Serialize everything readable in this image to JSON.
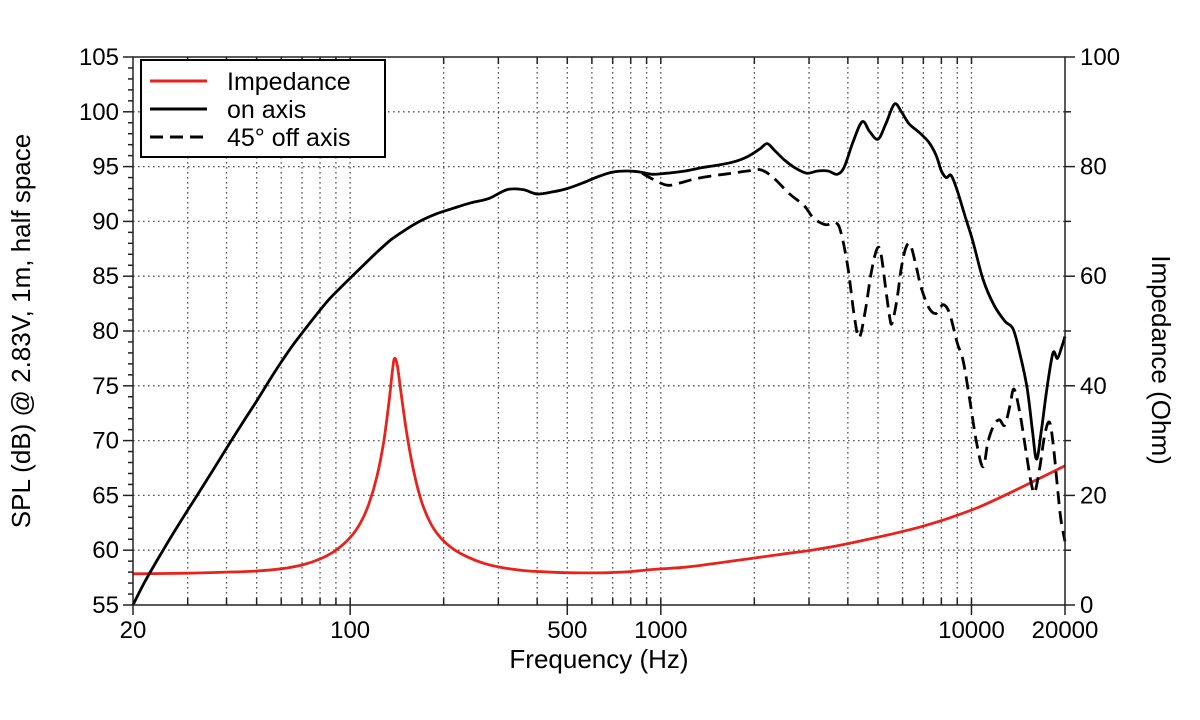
{
  "figure": {
    "background": "#ffffff"
  },
  "chart_data": {
    "type": "line",
    "title": "",
    "xlabel": "Frequency (Hz)",
    "ylabel_left": "SPL (dB) @ 2.83V, 1m, half space",
    "ylabel_right": "Impedance (Ohm)",
    "grid": true,
    "colors": {
      "impedance_red": "#e8231d",
      "curve_black": "#000000",
      "grid_gray": "#555555",
      "frame_dark": "#222222"
    },
    "x_axis": {
      "scale": "log",
      "min": 20,
      "max": 20000,
      "major_ticks": [
        20,
        100,
        500,
        1000,
        10000,
        20000
      ],
      "tick_labels": [
        "20",
        "100",
        "500",
        "1000",
        "10000",
        "20000"
      ]
    },
    "y_left": {
      "min": 55,
      "max": 105,
      "major_step": 5,
      "minor_step": 1,
      "tick_labels": [
        "55",
        "60",
        "65",
        "70",
        "75",
        "80",
        "85",
        "90",
        "95",
        "100",
        "105"
      ]
    },
    "y_right": {
      "min": 0,
      "max": 100,
      "major_step": 20,
      "minor_step": 10,
      "tick_labels": [
        "0",
        "20",
        "40",
        "60",
        "80",
        "100"
      ]
    },
    "legend": [
      {
        "label": "Impedance",
        "color": "#e8231d",
        "style": "solid"
      },
      {
        "label": "on axis",
        "color": "#000000",
        "style": "solid"
      },
      {
        "label": "45° off axis",
        "color": "#000000",
        "style": "dashed"
      }
    ],
    "series": [
      {
        "name": "Impedance",
        "axis": "right",
        "unit": "Ohm",
        "color": "#e8231d",
        "style": "solid",
        "points": [
          [
            20,
            5.7
          ],
          [
            30,
            5.8
          ],
          [
            40,
            6.0
          ],
          [
            50,
            6.2
          ],
          [
            60,
            6.6
          ],
          [
            70,
            7.3
          ],
          [
            80,
            8.4
          ],
          [
            90,
            10.0
          ],
          [
            100,
            12.3
          ],
          [
            108,
            15.0
          ],
          [
            115,
            18.5
          ],
          [
            122,
            23.5
          ],
          [
            128,
            29.5
          ],
          [
            133,
            36.5
          ],
          [
            137,
            43.0
          ],
          [
            139,
            45.0
          ],
          [
            142,
            43.5
          ],
          [
            146,
            38.5
          ],
          [
            152,
            31.5
          ],
          [
            160,
            24.5
          ],
          [
            170,
            18.8
          ],
          [
            182,
            14.8
          ],
          [
            196,
            12.2
          ],
          [
            215,
            10.2
          ],
          [
            240,
            8.7
          ],
          [
            270,
            7.6
          ],
          [
            310,
            6.8
          ],
          [
            360,
            6.3
          ],
          [
            420,
            6.05
          ],
          [
            500,
            5.9
          ],
          [
            580,
            5.85
          ],
          [
            680,
            5.9
          ],
          [
            800,
            6.1
          ],
          [
            950,
            6.5
          ],
          [
            1200,
            6.9
          ],
          [
            1500,
            7.6
          ],
          [
            1900,
            8.4
          ],
          [
            2400,
            9.2
          ],
          [
            3050,
            10.0
          ],
          [
            3700,
            10.8
          ],
          [
            4500,
            11.8
          ],
          [
            5500,
            12.9
          ],
          [
            6800,
            14.2
          ],
          [
            8500,
            15.9
          ],
          [
            10500,
            17.8
          ],
          [
            13000,
            20.2
          ],
          [
            16000,
            22.7
          ],
          [
            20000,
            25.4
          ]
        ]
      },
      {
        "name": "on axis",
        "axis": "left",
        "unit": "dB",
        "color": "#000000",
        "style": "solid",
        "points": [
          [
            20,
            55
          ],
          [
            22,
            57.3
          ],
          [
            25,
            60
          ],
          [
            28,
            62.3
          ],
          [
            32,
            64.9
          ],
          [
            36,
            67.2
          ],
          [
            40,
            69.3
          ],
          [
            45,
            71.6
          ],
          [
            50,
            73.6
          ],
          [
            57,
            76.2
          ],
          [
            65,
            78.6
          ],
          [
            75,
            80.9
          ],
          [
            85,
            82.8
          ],
          [
            95,
            84.2
          ],
          [
            105,
            85.4
          ],
          [
            120,
            87
          ],
          [
            135,
            88.3
          ],
          [
            150,
            89.2
          ],
          [
            170,
            90.1
          ],
          [
            190,
            90.7
          ],
          [
            215,
            91.2
          ],
          [
            245,
            91.7
          ],
          [
            280,
            92.1
          ],
          [
            320,
            92.9
          ],
          [
            360,
            92.9
          ],
          [
            400,
            92.5
          ],
          [
            450,
            92.7
          ],
          [
            500,
            93
          ],
          [
            560,
            93.5
          ],
          [
            630,
            94.1
          ],
          [
            700,
            94.5
          ],
          [
            780,
            94.6
          ],
          [
            860,
            94.5
          ],
          [
            940,
            94.3
          ],
          [
            1050,
            94.4
          ],
          [
            1200,
            94.6
          ],
          [
            1350,
            94.9
          ],
          [
            1500,
            95.1
          ],
          [
            1700,
            95.4
          ],
          [
            1900,
            95.9
          ],
          [
            2080,
            96.6
          ],
          [
            2200,
            97.1
          ],
          [
            2320,
            96.5
          ],
          [
            2500,
            95.6
          ],
          [
            2700,
            94.9
          ],
          [
            2950,
            94.4
          ],
          [
            3200,
            94.6
          ],
          [
            3450,
            94.6
          ],
          [
            3700,
            94.3
          ],
          [
            3900,
            95
          ],
          [
            4150,
            97.2
          ],
          [
            4450,
            99.1
          ],
          [
            4700,
            98.2
          ],
          [
            5000,
            97.5
          ],
          [
            5300,
            98.9
          ],
          [
            5650,
            100.7
          ],
          [
            5950,
            100
          ],
          [
            6300,
            98.9
          ],
          [
            6800,
            98.1
          ],
          [
            7300,
            97.2
          ],
          [
            7700,
            96
          ],
          [
            8000,
            94.6
          ],
          [
            8300,
            94
          ],
          [
            8600,
            94.2
          ],
          [
            9000,
            92.8
          ],
          [
            9600,
            90.2
          ],
          [
            10100,
            88.2
          ],
          [
            10900,
            84.7
          ],
          [
            11800,
            82.4
          ],
          [
            12800,
            80.9
          ],
          [
            13600,
            80.2
          ],
          [
            14300,
            78
          ],
          [
            15100,
            74.8
          ],
          [
            15700,
            71
          ],
          [
            16200,
            68.3
          ],
          [
            16800,
            71
          ],
          [
            17500,
            74.8
          ],
          [
            18300,
            78
          ],
          [
            18900,
            77.5
          ],
          [
            19500,
            78.5
          ],
          [
            20000,
            79.5
          ]
        ]
      },
      {
        "name": "45° off axis",
        "axis": "left",
        "unit": "dB",
        "color": "#000000",
        "style": "dashed",
        "points": [
          [
            870,
            94.4
          ],
          [
            950,
            93.8
          ],
          [
            1050,
            93.3
          ],
          [
            1150,
            93.5
          ],
          [
            1300,
            93.9
          ],
          [
            1500,
            94.2
          ],
          [
            1700,
            94.4
          ],
          [
            1900,
            94.6
          ],
          [
            2100,
            94.7
          ],
          [
            2300,
            94
          ],
          [
            2600,
            92.5
          ],
          [
            2900,
            91.4
          ],
          [
            3100,
            90.3
          ],
          [
            3400,
            89.7
          ],
          [
            3650,
            89.9
          ],
          [
            3800,
            89
          ],
          [
            4000,
            85.8
          ],
          [
            4200,
            81.3
          ],
          [
            4350,
            79.4
          ],
          [
            4550,
            81.8
          ],
          [
            4750,
            85.2
          ],
          [
            4950,
            87.4
          ],
          [
            5100,
            87.2
          ],
          [
            5300,
            83.8
          ],
          [
            5450,
            81.3
          ],
          [
            5550,
            80.7
          ],
          [
            5750,
            82.8
          ],
          [
            5950,
            85.8
          ],
          [
            6150,
            87.6
          ],
          [
            6350,
            87.9
          ],
          [
            6600,
            86.2
          ],
          [
            6900,
            83.9
          ],
          [
            7300,
            82.1
          ],
          [
            7700,
            81.6
          ],
          [
            8100,
            82.4
          ],
          [
            8500,
            81.6
          ],
          [
            9000,
            78.9
          ],
          [
            9400,
            77.3
          ],
          [
            9900,
            73.5
          ],
          [
            10400,
            69.7
          ],
          [
            10900,
            67.6
          ],
          [
            11300,
            69.9
          ],
          [
            11800,
            71.4
          ],
          [
            12300,
            71.9
          ],
          [
            12800,
            71.4
          ],
          [
            13300,
            73.2
          ],
          [
            13700,
            74.7
          ],
          [
            14300,
            72.6
          ],
          [
            15000,
            68.9
          ],
          [
            15600,
            66
          ],
          [
            16000,
            65.3
          ],
          [
            16600,
            67.6
          ],
          [
            17200,
            70.5
          ],
          [
            17800,
            71.7
          ],
          [
            18300,
            69.8
          ],
          [
            18900,
            65.8
          ],
          [
            19400,
            62.8
          ],
          [
            20000,
            60.8
          ]
        ]
      }
    ]
  }
}
